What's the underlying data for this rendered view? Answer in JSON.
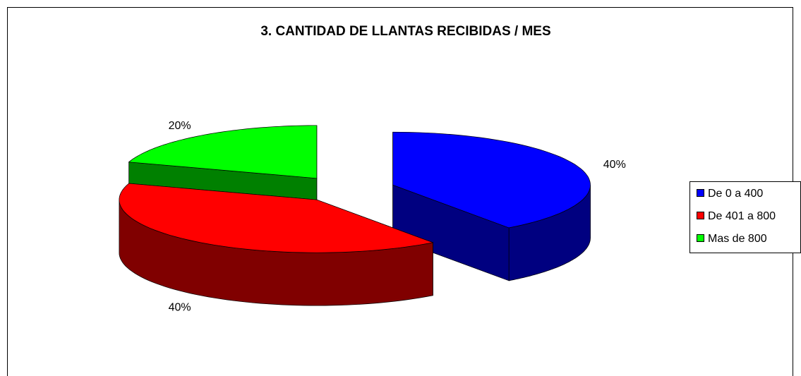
{
  "chart_data": {
    "type": "pie3d",
    "title": "3. CANTIDAD DE LLANTAS RECIBIDAS / MES",
    "categories": [
      "De 0 a 400",
      "De 401 a 800",
      "Mas de 800"
    ],
    "values": [
      40,
      40,
      20
    ],
    "value_labels": [
      "40%",
      "40%",
      "20%"
    ],
    "colors": [
      "#0000ff",
      "#ff0000",
      "#00ff00"
    ],
    "legend": "right"
  }
}
